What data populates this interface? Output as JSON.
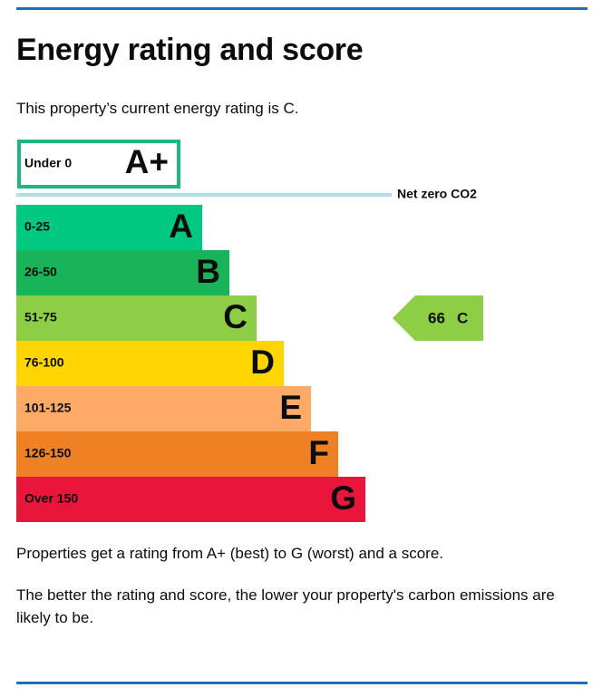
{
  "header": {
    "title": "Energy rating and score"
  },
  "intro": "This property’s current energy rating is C.",
  "top_band": {
    "range": "Under 0",
    "letter": "A+",
    "color": "#1fb57f"
  },
  "net_zero": {
    "label": "Net zero CO2",
    "color": "#afdfe8"
  },
  "bands": [
    {
      "range": "0-25",
      "letter": "A",
      "color": "#00c781"
    },
    {
      "range": "26-50",
      "letter": "B",
      "color": "#19b459"
    },
    {
      "range": "51-75",
      "letter": "C",
      "color": "#8dce46"
    },
    {
      "range": "76-100",
      "letter": "D",
      "color": "#ffd500"
    },
    {
      "range": "101-125",
      "letter": "E",
      "color": "#fcaa65"
    },
    {
      "range": "126-150",
      "letter": "F",
      "color": "#ef8023"
    },
    {
      "range": "Over 150",
      "letter": "G",
      "color": "#e9153b"
    }
  ],
  "current": {
    "score": 66,
    "rating": "C",
    "band": 2
  },
  "paragraphs": [
    "Properties get a rating from A+ (best) to G (worst) and a score.",
    "The better the rating and score, the lower your property's carbon emissions are likely to be."
  ]
}
